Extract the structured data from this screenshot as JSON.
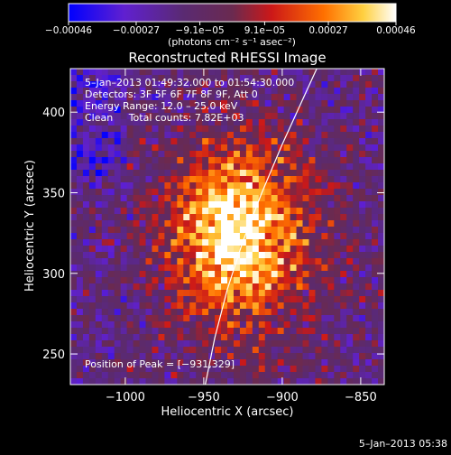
{
  "chart_data": {
    "type": "heatmap",
    "title": "Reconstructed RHESSI Image",
    "xlabel": "Heliocentric X (arcsec)",
    "ylabel": "Heliocentric Y (arcsec)",
    "xlim": [
      -1035,
      -835
    ],
    "ylim": [
      231,
      427
    ],
    "xticks": [
      -1000,
      -950,
      -900,
      -850
    ],
    "xtick_labels": [
      "−1000",
      "−950",
      "−900",
      "−850"
    ],
    "yticks": [
      250,
      300,
      350,
      400
    ],
    "ytick_labels": [
      "250",
      "300",
      "350",
      "400"
    ],
    "colorbar": {
      "range": [
        -0.00046,
        0.00046
      ],
      "ticks": [
        -0.00046,
        -0.00027,
        -9.1e-05,
        9.1e-05,
        0.00027,
        0.00046
      ],
      "tick_labels": [
        "−0.00046",
        "−0.00027",
        "−9.1e−05",
        "9.1e−05",
        "0.00027",
        "0.00046"
      ],
      "units": "(photons cm⁻² s⁻¹ asec⁻²)"
    },
    "annotations": {
      "time_range": "5–Jan–2013 01:49:32.000 to 01:54:30.000",
      "detectors": "Detectors: 3F 5F 6F 7F 8F 9F, Att 0",
      "energy": "Energy Range: 12.0 – 25.0 keV",
      "clean": "Clean     Total counts: 7.82E+03",
      "peak": "Position of Peak = [−931,329]"
    },
    "peak": {
      "x": -931,
      "y": 329,
      "value": 0.00046
    },
    "limb_line": [
      [
        -949,
        231
      ],
      [
        -943,
        260
      ],
      [
        -935,
        290
      ],
      [
        -925,
        320
      ],
      [
        -913,
        350
      ],
      [
        -900,
        380
      ],
      [
        -886,
        410
      ],
      [
        -878,
        427
      ]
    ],
    "grid": false,
    "colormap": [
      "#0000ff",
      "#6020d0",
      "#5a2a72",
      "#6a2a50",
      "#cc1818",
      "#ff7000",
      "#ffd040",
      "#ffffff"
    ]
  },
  "footer": {
    "timestamp": "5–Jan–2013 05:38"
  }
}
